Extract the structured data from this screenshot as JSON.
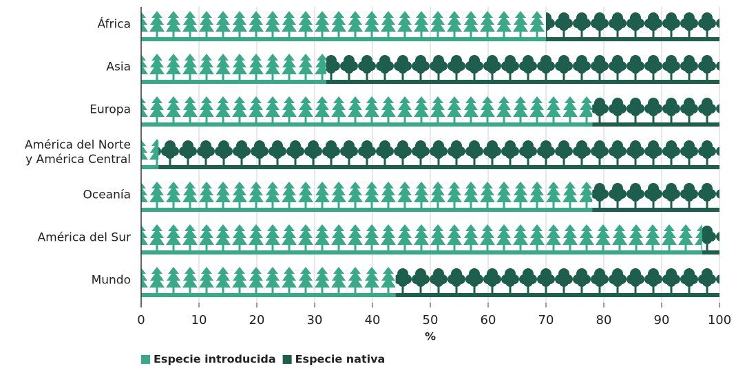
{
  "chart_data": {
    "type": "stacked_bar_horizontal",
    "categories": [
      "África",
      "Asia",
      "Europa",
      "América del Norte\ny América Central",
      "Oceanía",
      "América del Sur",
      "Mundo"
    ],
    "series": [
      {
        "name": "Especie introducida",
        "color": "#3aa98a",
        "values": [
          70,
          32,
          78,
          3,
          78,
          97,
          44
        ]
      },
      {
        "name": "Especie nativa",
        "color": "#1e5e4c",
        "values": [
          30,
          68,
          22,
          97,
          22,
          3,
          56
        ]
      }
    ],
    "xlim": [
      0,
      100
    ],
    "xticks": [
      0,
      10,
      20,
      30,
      40,
      50,
      60,
      70,
      80,
      90,
      100
    ],
    "xlabel": "%",
    "grid": true
  }
}
